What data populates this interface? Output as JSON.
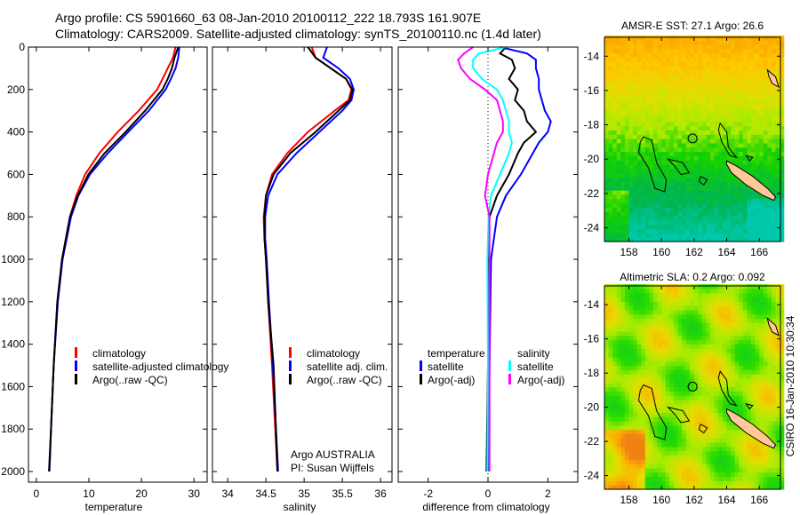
{
  "title_line1": "Argo profile: CS 5901660_63 08-Jan-2010 20100112_222 18.793S 161.907E",
  "title_line2": "Climatology: CARS2009. Satellite-adjusted climatology: synTS_20100110.nc (1.4d later)",
  "side_stamp": "CSIRO 16-Jan-2010 10:30:34",
  "colors": {
    "climatology": "#ff0000",
    "satellite": "#0000ff",
    "argo": "#000000",
    "sal_satellite": "#00ffff",
    "sal_argo": "#ff00ff",
    "land": "#ffc896"
  },
  "chart_data": [
    {
      "type": "line",
      "id": "temperature",
      "xlabel": "temperature",
      "ylabel": "",
      "xlim": [
        -1.5,
        32.5
      ],
      "ylim": [
        2050,
        0
      ],
      "xticks": [
        0,
        10,
        20,
        30
      ],
      "yticks": [
        0,
        200,
        400,
        600,
        800,
        1000,
        1200,
        1400,
        1600,
        1800,
        2000
      ],
      "legend": [
        "climatology",
        "satellite-adjusted climatology",
        "Argo(..raw -QC)"
      ],
      "depth": [
        0,
        50,
        100,
        150,
        200,
        300,
        400,
        500,
        600,
        700,
        800,
        1000,
        1200,
        1500,
        1800,
        2000
      ],
      "series": [
        {
          "name": "climatology",
          "color": "#ff0000",
          "values": [
            26.5,
            26,
            25,
            24,
            23,
            19.5,
            15.5,
            12,
            9.3,
            7.6,
            6.4,
            4.9,
            4.0,
            3.3,
            2.8,
            2.5
          ]
        },
        {
          "name": "satellite-adjusted climatology",
          "color": "#0000ff",
          "values": [
            27.2,
            27,
            26.5,
            25.6,
            24.6,
            21.4,
            17.5,
            13.6,
            10.2,
            8.0,
            6.6,
            5.0,
            4.1,
            3.3,
            2.8,
            2.5
          ]
        },
        {
          "name": "Argo(..raw -QC)",
          "color": "#000000",
          "values": [
            27,
            26.3,
            25.8,
            25,
            24,
            20.7,
            17,
            13,
            9.9,
            7.9,
            6.4,
            4.9,
            4.0,
            3.3,
            2.8,
            2.4
          ]
        }
      ]
    },
    {
      "type": "line",
      "id": "salinity",
      "xlabel": "salinity",
      "xlim": [
        33.8,
        36.15
      ],
      "ylim": [
        2050,
        0
      ],
      "xticks": [
        34,
        34.5,
        35,
        35.5,
        36
      ],
      "legend": [
        "climatology",
        "satellite adj. clim.",
        "Argo(..raw -QC)"
      ],
      "annotation": [
        "Argo AUSTRALIA",
        "PI: Susan Wijffels"
      ],
      "depth": [
        0,
        50,
        100,
        150,
        200,
        250,
        300,
        400,
        500,
        600,
        700,
        800,
        900,
        1000,
        1200,
        1500,
        2000
      ],
      "series": [
        {
          "name": "climatology",
          "color": "#ff0000",
          "values": [
            35.1,
            35.15,
            35.35,
            35.55,
            35.62,
            35.58,
            35.4,
            35.05,
            34.78,
            34.58,
            34.5,
            34.47,
            34.48,
            34.5,
            34.53,
            34.58,
            34.65
          ]
        },
        {
          "name": "satellite adj. clim.",
          "color": "#0000ff",
          "values": [
            35.3,
            35.25,
            35.45,
            35.6,
            35.65,
            35.62,
            35.5,
            35.2,
            34.9,
            34.65,
            34.53,
            34.49,
            34.49,
            34.51,
            34.54,
            34.59,
            34.66
          ]
        },
        {
          "name": "Argo(..raw -QC)",
          "color": "#000000",
          "values": [
            35.05,
            35.15,
            35.35,
            35.55,
            35.63,
            35.6,
            35.45,
            35.15,
            34.82,
            34.6,
            34.5,
            34.48,
            34.48,
            34.5,
            34.53,
            34.6,
            34.65
          ]
        }
      ]
    },
    {
      "type": "line",
      "id": "difference",
      "xlabel": "difference from climatology",
      "xlim": [
        -3,
        3
      ],
      "ylim": [
        2050,
        0
      ],
      "xticks": [
        -2,
        0,
        2
      ],
      "legend_temperature": {
        "heading": "temperature",
        "items": [
          "satellite",
          "Argo(-adj)"
        ]
      },
      "legend_salinity": {
        "heading": "salinity",
        "items": [
          "satellite",
          "Argo(-adj)"
        ]
      },
      "depth": [
        0,
        30,
        60,
        100,
        150,
        200,
        250,
        300,
        350,
        400,
        450,
        500,
        600,
        700,
        800,
        1000,
        1500,
        2000
      ],
      "series": [
        {
          "name": "temperature satellite",
          "color": "#0000ff",
          "values": [
            0.4,
            1.3,
            1.6,
            1.6,
            1.7,
            1.7,
            1.8,
            1.9,
            2.1,
            2.0,
            1.7,
            1.5,
            1.1,
            0.6,
            0.3,
            0.1,
            0.05,
            0
          ]
        },
        {
          "name": "temperature Argo(-adj)",
          "color": "#000000",
          "values": [
            0.6,
            0.4,
            0.8,
            0.9,
            0.7,
            1.0,
            0.9,
            1.2,
            1.3,
            1.6,
            1.2,
            1.0,
            0.7,
            0.3,
            0.05,
            0,
            0,
            -0.05
          ]
        },
        {
          "name": "salinity satellite",
          "color": "#00ffff",
          "values": [
            0.6,
            -0.3,
            -0.5,
            -0.5,
            -0.2,
            0.3,
            0.5,
            0.6,
            0.7,
            0.7,
            0.8,
            0.7,
            0.4,
            0.1,
            0.02,
            -0.02,
            0,
            -0.02
          ]
        },
        {
          "name": "salinity Argo(-adj)",
          "color": "#ff00ff",
          "values": [
            -0.5,
            -0.8,
            -1.0,
            -0.9,
            -0.6,
            -0.1,
            0.3,
            0.4,
            0.5,
            0.5,
            0.3,
            0.2,
            0.0,
            -0.1,
            0.05,
            0.05,
            0.05,
            0.05
          ]
        }
      ]
    },
    {
      "type": "heatmap",
      "id": "sst_map",
      "title": "AMSR-E SST: 27.1 Argo: 26.6",
      "xlim": [
        156.5,
        167.3
      ],
      "ylim": [
        -24.8,
        -12.9
      ],
      "xticks": [
        158,
        160,
        162,
        164,
        166
      ],
      "yticks": [
        -14,
        -16,
        -18,
        -20,
        -22,
        -24
      ],
      "argo_position": [
        161.907,
        -18.793
      ]
    },
    {
      "type": "heatmap",
      "id": "sla_map",
      "title": "Altimetric SLA: 0.2 Argo: 0.092",
      "xlim": [
        156.5,
        167.3
      ],
      "ylim": [
        -24.8,
        -12.9
      ],
      "xticks": [
        158,
        160,
        162,
        164,
        166
      ],
      "yticks": [
        -14,
        -16,
        -18,
        -20,
        -22,
        -24
      ],
      "argo_position": [
        161.907,
        -18.793
      ]
    }
  ]
}
